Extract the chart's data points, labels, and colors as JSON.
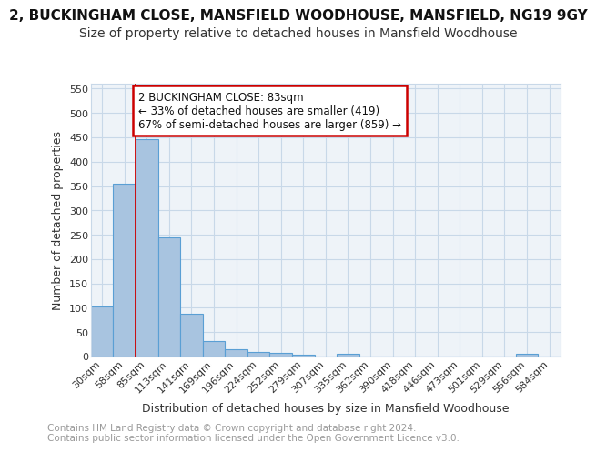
{
  "title": "2, BUCKINGHAM CLOSE, MANSFIELD WOODHOUSE, MANSFIELD, NG19 9GY",
  "subtitle": "Size of property relative to detached houses in Mansfield Woodhouse",
  "xlabel": "Distribution of detached houses by size in Mansfield Woodhouse",
  "ylabel": "Number of detached properties",
  "bin_labels": [
    "30sqm",
    "58sqm",
    "85sqm",
    "113sqm",
    "141sqm",
    "169sqm",
    "196sqm",
    "224sqm",
    "252sqm",
    "279sqm",
    "307sqm",
    "335sqm",
    "362sqm",
    "390sqm",
    "418sqm",
    "446sqm",
    "473sqm",
    "501sqm",
    "529sqm",
    "556sqm",
    "584sqm"
  ],
  "bar_values": [
    102,
    355,
    447,
    245,
    88,
    31,
    15,
    10,
    7,
    4,
    0,
    5,
    0,
    0,
    0,
    0,
    0,
    0,
    0,
    5,
    0
  ],
  "bar_color": "#a8c4e0",
  "bar_edge_color": "#5a9fd4",
  "subject_line_color": "#cc0000",
  "annotation_text": "2 BUCKINGHAM CLOSE: 83sqm\n← 33% of detached houses are smaller (419)\n67% of semi-detached houses are larger (859) →",
  "annotation_box_color": "#ffffff",
  "annotation_box_edge_color": "#cc0000",
  "ylim": [
    0,
    560
  ],
  "yticks": [
    0,
    50,
    100,
    150,
    200,
    250,
    300,
    350,
    400,
    450,
    500,
    550
  ],
  "footer_text": "Contains HM Land Registry data © Crown copyright and database right 2024.\nContains public sector information licensed under the Open Government Licence v3.0.",
  "background_color": "#ffffff",
  "plot_background_color": "#eef3f8",
  "grid_color": "#c8d8e8",
  "title_fontsize": 11,
  "subtitle_fontsize": 10,
  "axis_label_fontsize": 9,
  "tick_fontsize": 8,
  "annotation_fontsize": 8.5,
  "footer_fontsize": 7.5
}
